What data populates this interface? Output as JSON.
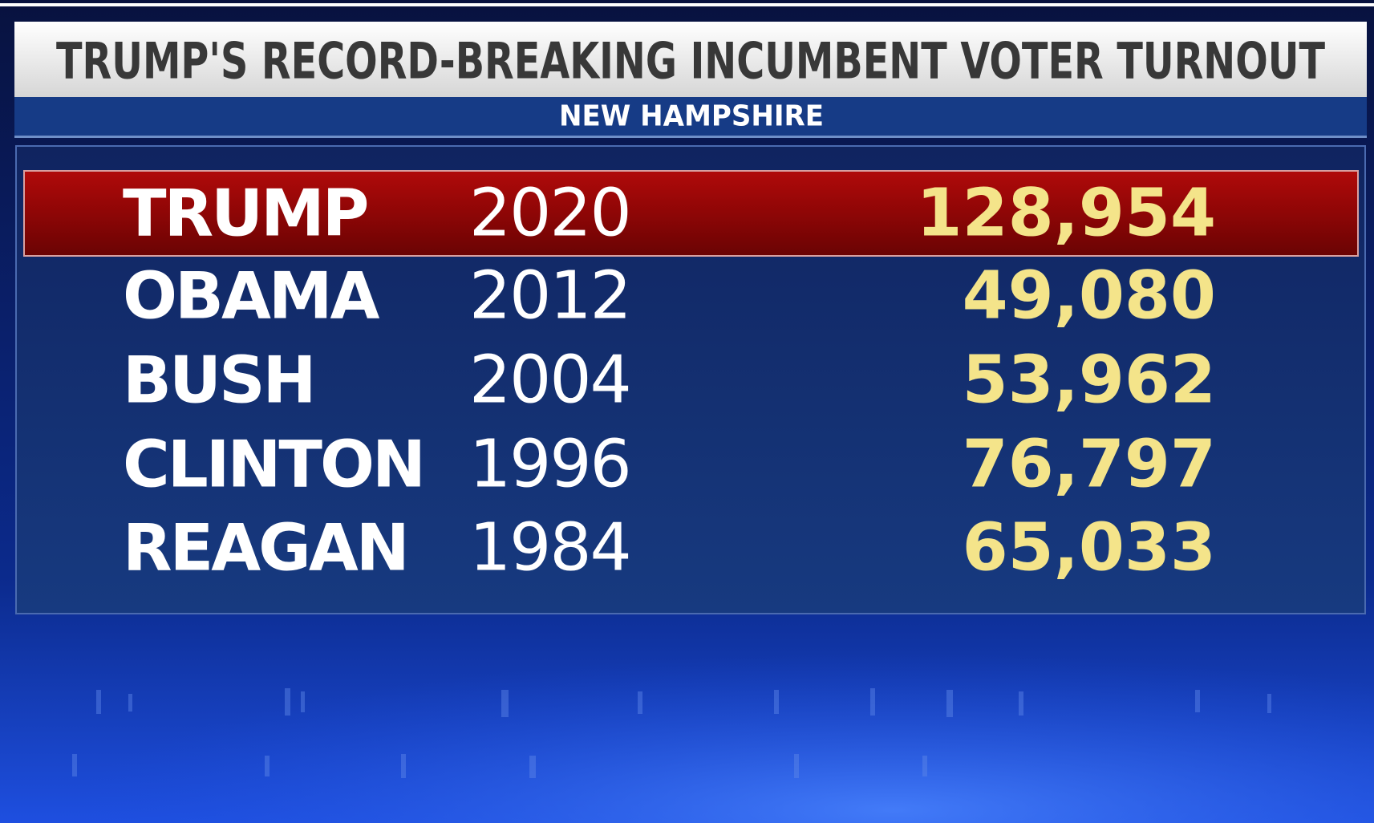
{
  "header": {
    "title": "TRUMP'S RECORD-BREAKING INCUMBENT VOTER TURNOUT",
    "subtitle": "NEW HAMPSHIRE"
  },
  "table": {
    "rows": [
      [
        "TRUMP",
        "2020",
        "128,954"
      ],
      [
        "OBAMA",
        "2012",
        "49,080"
      ],
      [
        "BUSH",
        "2004",
        "53,962"
      ],
      [
        "CLINTON",
        "1996",
        "76,797"
      ],
      [
        "REAGAN",
        "1984",
        "65,033"
      ]
    ]
  }
}
